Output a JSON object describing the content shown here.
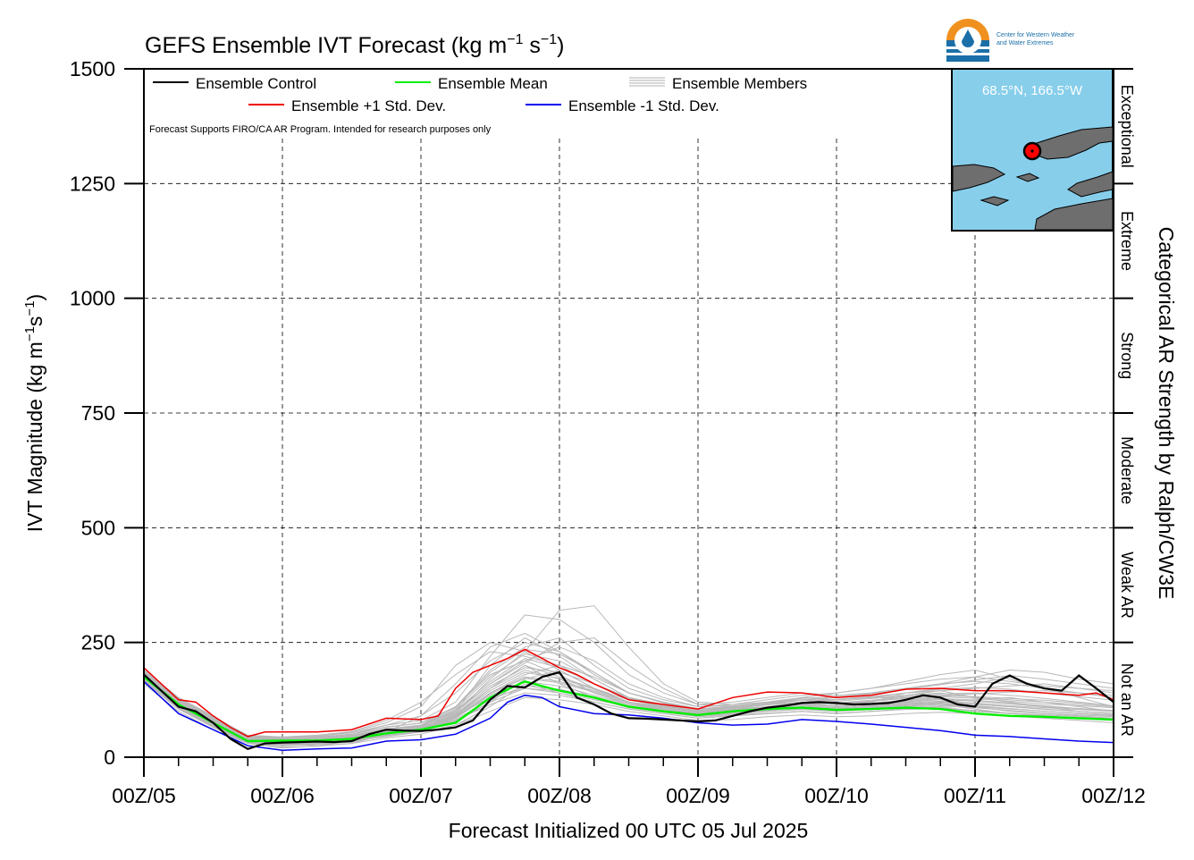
{
  "chart_data": {
    "type": "line",
    "title_main": "GEFS Ensemble IVT Forecast (kg m",
    "title_exp1": "−1",
    "title_mid": " s",
    "title_exp2": "−1",
    "title_close": ")",
    "ylabel_main": "IVT Magnitude (kg m",
    "ylabel_exp1": "−1",
    "ylabel_mid": "s",
    "ylabel_exp2": "−1",
    "ylabel_close": ")",
    "xlabel": "Forecast Initialized 00 UTC 05 Jul 2025",
    "right_label": "Categorical AR Strength by Ralph/CW3E",
    "disclaimer": "Forecast Supports FIRO/CA AR Program. Intended for research purposes only",
    "logo_text_line1": "Center for Western Weather",
    "logo_text_line2": "and Water Extremes",
    "location_label": "68.5°N, 166.5°W",
    "ylim": [
      0,
      1500
    ],
    "yticks": [
      0,
      250,
      500,
      750,
      1000,
      1250,
      1500
    ],
    "ytick_labels": [
      "0",
      "250",
      "500",
      "750",
      "1000",
      "1250",
      "1500"
    ],
    "xlim": [
      0,
      168
    ],
    "xticks": [
      0,
      24,
      48,
      72,
      96,
      120,
      144,
      168
    ],
    "xtick_labels": [
      "00Z/05",
      "00Z/06",
      "00Z/07",
      "00Z/08",
      "00Z/09",
      "00Z/10",
      "00Z/11",
      "00Z/12"
    ],
    "grid": true,
    "legend": [
      {
        "label": "Ensemble Control",
        "color": "#000000",
        "style": "line"
      },
      {
        "label": "Ensemble Mean",
        "color": "#00ee00",
        "style": "line"
      },
      {
        "label": "Ensemble Members",
        "color": "#b0b0b0",
        "style": "multiline"
      },
      {
        "label": "Ensemble +1 Std. Dev.",
        "color": "#ee0000",
        "style": "line"
      },
      {
        "label": "Ensemble -1 Std. Dev.",
        "color": "#0000ee",
        "style": "line"
      }
    ],
    "categories_right": [
      {
        "label": "Not an AR",
        "from": 0,
        "to": 250
      },
      {
        "label": "Weak AR",
        "from": 250,
        "to": 500
      },
      {
        "label": "Moderate",
        "from": 500,
        "to": 750
      },
      {
        "label": "Strong",
        "from": 750,
        "to": 1000
      },
      {
        "label": "Extreme",
        "from": 1000,
        "to": 1250
      },
      {
        "label": "Exceptional",
        "from": 1250,
        "to": 1500
      }
    ],
    "x_hours": [
      0,
      6,
      12,
      18,
      24,
      30,
      36,
      42,
      48,
      54,
      60,
      66,
      72,
      78,
      84,
      90,
      96,
      102,
      108,
      114,
      120,
      126,
      132,
      138,
      144,
      150,
      156,
      162,
      168
    ],
    "series": [
      {
        "name": "Ensemble Control",
        "color": "#000000",
        "x": [
          0,
          6,
          9,
          12,
          15,
          18,
          21,
          24,
          27,
          30,
          33,
          36,
          39,
          42,
          45,
          48,
          51,
          54,
          57,
          60,
          63,
          66,
          69,
          72,
          75,
          78,
          81,
          84,
          87,
          90,
          93,
          96,
          99,
          102,
          105,
          108,
          111,
          114,
          117,
          120,
          123,
          126,
          129,
          132,
          135,
          138,
          141,
          144,
          147,
          150,
          153,
          156,
          159,
          162,
          165,
          168
        ],
        "y": [
          180,
          110,
          100,
          75,
          40,
          18,
          30,
          32,
          33,
          34,
          33,
          35,
          50,
          60,
          58,
          57,
          60,
          65,
          80,
          125,
          155,
          152,
          175,
          185,
          130,
          115,
          95,
          85,
          84,
          82,
          80,
          78,
          80,
          90,
          100,
          108,
          112,
          118,
          120,
          118,
          115,
          116,
          118,
          125,
          135,
          130,
          115,
          110,
          160,
          178,
          160,
          150,
          145,
          178,
          150,
          120
        ]
      },
      {
        "name": "Ensemble Mean",
        "color": "#00ee00",
        "x": [
          0,
          6,
          12,
          18,
          24,
          30,
          36,
          42,
          48,
          54,
          60,
          66,
          72,
          78,
          84,
          90,
          96,
          102,
          108,
          114,
          120,
          126,
          132,
          138,
          144,
          150,
          156,
          162,
          168
        ],
        "y": [
          175,
          115,
          75,
          35,
          36,
          36,
          40,
          52,
          60,
          75,
          130,
          165,
          145,
          130,
          110,
          100,
          92,
          100,
          105,
          108,
          103,
          105,
          108,
          105,
          95,
          90,
          88,
          85,
          82
        ]
      },
      {
        "name": "Ensemble +1 Std. Dev.",
        "color": "#ee0000",
        "x": [
          0,
          6,
          9,
          12,
          15,
          18,
          21,
          24,
          30,
          36,
          42,
          48,
          51,
          54,
          57,
          60,
          63,
          66,
          69,
          72,
          75,
          78,
          84,
          90,
          96,
          102,
          108,
          114,
          120,
          126,
          132,
          138,
          144,
          150,
          156,
          162,
          165,
          168
        ],
        "y": [
          195,
          125,
          120,
          90,
          65,
          45,
          55,
          55,
          55,
          60,
          85,
          82,
          90,
          150,
          185,
          200,
          215,
          235,
          215,
          195,
          180,
          160,
          125,
          115,
          105,
          130,
          142,
          140,
          130,
          135,
          148,
          150,
          145,
          145,
          140,
          135,
          140,
          125
        ]
      },
      {
        "name": "Ensemble -1 Std. Dev.",
        "color": "#0000ee",
        "x": [
          0,
          6,
          12,
          18,
          24,
          30,
          36,
          42,
          48,
          54,
          60,
          63,
          66,
          69,
          72,
          78,
          84,
          90,
          96,
          102,
          108,
          114,
          120,
          126,
          132,
          138,
          144,
          150,
          156,
          162,
          168
        ],
        "y": [
          165,
          95,
          60,
          25,
          15,
          18,
          20,
          35,
          38,
          50,
          85,
          120,
          135,
          130,
          110,
          95,
          92,
          85,
          75,
          70,
          72,
          82,
          78,
          72,
          65,
          58,
          48,
          45,
          40,
          35,
          32
        ]
      }
    ],
    "members": [
      [
        170,
        120,
        80,
        40,
        30,
        25,
        30,
        50,
        60,
        90,
        150,
        200,
        160,
        130,
        110,
        100,
        95,
        105,
        115,
        120,
        110,
        115,
        125,
        130,
        110,
        105,
        100,
        95,
        90
      ],
      [
        180,
        110,
        70,
        35,
        35,
        40,
        45,
        55,
        70,
        110,
        180,
        210,
        180,
        140,
        115,
        105,
        90,
        100,
        110,
        115,
        120,
        110,
        115,
        120,
        125,
        130,
        120,
        110,
        100
      ],
      [
        190,
        130,
        90,
        45,
        40,
        35,
        40,
        60,
        65,
        80,
        120,
        170,
        190,
        150,
        120,
        110,
        100,
        110,
        120,
        125,
        115,
        120,
        140,
        150,
        160,
        175,
        150,
        130,
        110
      ],
      [
        160,
        100,
        60,
        30,
        20,
        25,
        35,
        45,
        55,
        70,
        110,
        160,
        140,
        120,
        105,
        95,
        85,
        90,
        95,
        100,
        95,
        100,
        105,
        110,
        100,
        95,
        90,
        85,
        80
      ],
      [
        175,
        115,
        75,
        38,
        32,
        30,
        38,
        52,
        60,
        100,
        200,
        260,
        220,
        170,
        130,
        115,
        100,
        105,
        110,
        115,
        105,
        110,
        120,
        115,
        105,
        95,
        90,
        85,
        80
      ],
      [
        185,
        125,
        85,
        42,
        38,
        42,
        50,
        70,
        80,
        120,
        220,
        310,
        300,
        250,
        180,
        140,
        115,
        120,
        130,
        140,
        135,
        140,
        150,
        160,
        175,
        190,
        185,
        170,
        160
      ],
      [
        165,
        105,
        65,
        32,
        25,
        28,
        33,
        48,
        58,
        85,
        140,
        180,
        200,
        175,
        140,
        120,
        105,
        110,
        115,
        120,
        110,
        115,
        120,
        125,
        115,
        110,
        105,
        100,
        95
      ],
      [
        178,
        118,
        78,
        40,
        36,
        38,
        45,
        58,
        62,
        95,
        170,
        230,
        320,
        330,
        240,
        160,
        120,
        115,
        120,
        130,
        125,
        130,
        135,
        140,
        130,
        125,
        120,
        115,
        110
      ],
      [
        172,
        112,
        72,
        36,
        30,
        33,
        40,
        55,
        90,
        160,
        240,
        270,
        230,
        180,
        140,
        120,
        105,
        110,
        120,
        130,
        140,
        150,
        165,
        180,
        190,
        170,
        150,
        140,
        130
      ],
      [
        168,
        108,
        68,
        34,
        28,
        30,
        36,
        50,
        60,
        90,
        130,
        150,
        140,
        125,
        110,
        100,
        90,
        95,
        100,
        105,
        100,
        105,
        110,
        115,
        110,
        100,
        95,
        90,
        85
      ],
      [
        182,
        122,
        82,
        44,
        40,
        45,
        55,
        75,
        110,
        200,
        250,
        230,
        190,
        150,
        120,
        110,
        100,
        105,
        110,
        120,
        125,
        130,
        140,
        145,
        150,
        155,
        160,
        150,
        140
      ],
      [
        176,
        116,
        76,
        38,
        33,
        35,
        42,
        55,
        65,
        90,
        150,
        190,
        170,
        140,
        115,
        105,
        95,
        100,
        110,
        115,
        110,
        120,
        135,
        145,
        130,
        120,
        110,
        100,
        95
      ],
      [
        170,
        110,
        70,
        36,
        30,
        32,
        38,
        50,
        58,
        80,
        115,
        140,
        135,
        120,
        105,
        95,
        85,
        90,
        95,
        100,
        95,
        100,
        105,
        108,
        100,
        95,
        90,
        85,
        80
      ],
      [
        186,
        126,
        86,
        46,
        42,
        44,
        50,
        65,
        75,
        110,
        190,
        240,
        260,
        200,
        150,
        125,
        110,
        115,
        125,
        135,
        140,
        150,
        160,
        170,
        175,
        165,
        155,
        150,
        145
      ],
      [
        174,
        114,
        74,
        37,
        31,
        34,
        41,
        53,
        61,
        88,
        140,
        175,
        165,
        145,
        120,
        108,
        98,
        102,
        108,
        112,
        108,
        112,
        118,
        122,
        118,
        112,
        108,
        104,
        100
      ],
      [
        179,
        119,
        79,
        41,
        37,
        39,
        46,
        60,
        68,
        100,
        160,
        210,
        240,
        210,
        160,
        130,
        110,
        112,
        118,
        125,
        122,
        128,
        132,
        138,
        140,
        135,
        128,
        120,
        112
      ],
      [
        165,
        105,
        65,
        30,
        22,
        24,
        30,
        42,
        50,
        70,
        100,
        130,
        125,
        115,
        100,
        90,
        80,
        82,
        88,
        92,
        88,
        90,
        95,
        98,
        95,
        90,
        85,
        80,
        75
      ],
      [
        188,
        128,
        88,
        48,
        44,
        48,
        56,
        80,
        120,
        180,
        230,
        220,
        200,
        160,
        130,
        115,
        100,
        108,
        115,
        125,
        130,
        140,
        150,
        160,
        165,
        160,
        150,
        140,
        135
      ],
      [
        171,
        111,
        71,
        35,
        29,
        31,
        37,
        51,
        59,
        85,
        135,
        165,
        155,
        135,
        115,
        102,
        92,
        96,
        102,
        108,
        102,
        108,
        114,
        118,
        112,
        106,
        100,
        96,
        92
      ],
      [
        183,
        123,
        83,
        43,
        39,
        41,
        48,
        62,
        70,
        105,
        175,
        225,
        210,
        170,
        130,
        112,
        100,
        106,
        114,
        120,
        118,
        124,
        130,
        135,
        138,
        142,
        145,
        140,
        130
      ],
      [
        177,
        117,
        77,
        39,
        34,
        37,
        44,
        57,
        64,
        92,
        150,
        200,
        175,
        150,
        125,
        112,
        102,
        104,
        110,
        116,
        112,
        118,
        124,
        128,
        124,
        118,
        112,
        106,
        100
      ],
      [
        169,
        109,
        69,
        33,
        27,
        29,
        35,
        49,
        57,
        82,
        125,
        155,
        148,
        132,
        112,
        100,
        90,
        94,
        100,
        104,
        100,
        104,
        108,
        112,
        108,
        102,
        96,
        92,
        88
      ],
      [
        181,
        121,
        81,
        42,
        38,
        40,
        47,
        61,
        69,
        102,
        165,
        215,
        195,
        160,
        125,
        110,
        98,
        102,
        110,
        118,
        116,
        122,
        128,
        134,
        132,
        128,
        124,
        118,
        112
      ],
      [
        173,
        113,
        73,
        37,
        31,
        33,
        40,
        54,
        62,
        90,
        145,
        185,
        172,
        148,
        120,
        106,
        96,
        100,
        106,
        110,
        106,
        110,
        116,
        120,
        116,
        110,
        104,
        100,
        96
      ],
      [
        187,
        127,
        87,
        47,
        43,
        46,
        53,
        70,
        90,
        140,
        210,
        250,
        230,
        185,
        140,
        120,
        106,
        110,
        118,
        128,
        132,
        138,
        148,
        158,
        168,
        178,
        170,
        160,
        150
      ],
      [
        167,
        107,
        67,
        33,
        26,
        28,
        34,
        47,
        56,
        78,
        120,
        150,
        145,
        128,
        108,
        98,
        88,
        92,
        96,
        100,
        96,
        100,
        104,
        106,
        102,
        96,
        92,
        88,
        84
      ],
      [
        184,
        124,
        84,
        45,
        41,
        43,
        50,
        66,
        74,
        108,
        185,
        235,
        225,
        185,
        140,
        118,
        104,
        108,
        116,
        124,
        126,
        132,
        140,
        148,
        152,
        148,
        140,
        132,
        124
      ],
      [
        175,
        115,
        75,
        38,
        32,
        35,
        42,
        56,
        63,
        93,
        155,
        195,
        185,
        160,
        128,
        112,
        100,
        104,
        110,
        116,
        112,
        116,
        122,
        126,
        122,
        116,
        110,
        106,
        102
      ],
      [
        180,
        120,
        80,
        41,
        36,
        38,
        45,
        59,
        66,
        97,
        160,
        205,
        250,
        260,
        200,
        150,
        115,
        110,
        115,
        120,
        118,
        122,
        128,
        132,
        128,
        122,
        116,
        112,
        108
      ],
      [
        172,
        112,
        72,
        36,
        30,
        32,
        39,
        52,
        60,
        87,
        138,
        172,
        162,
        142,
        118,
        104,
        94,
        98,
        104,
        108,
        104,
        108,
        112,
        116,
        112,
        106,
        100,
        96,
        92
      ]
    ]
  }
}
